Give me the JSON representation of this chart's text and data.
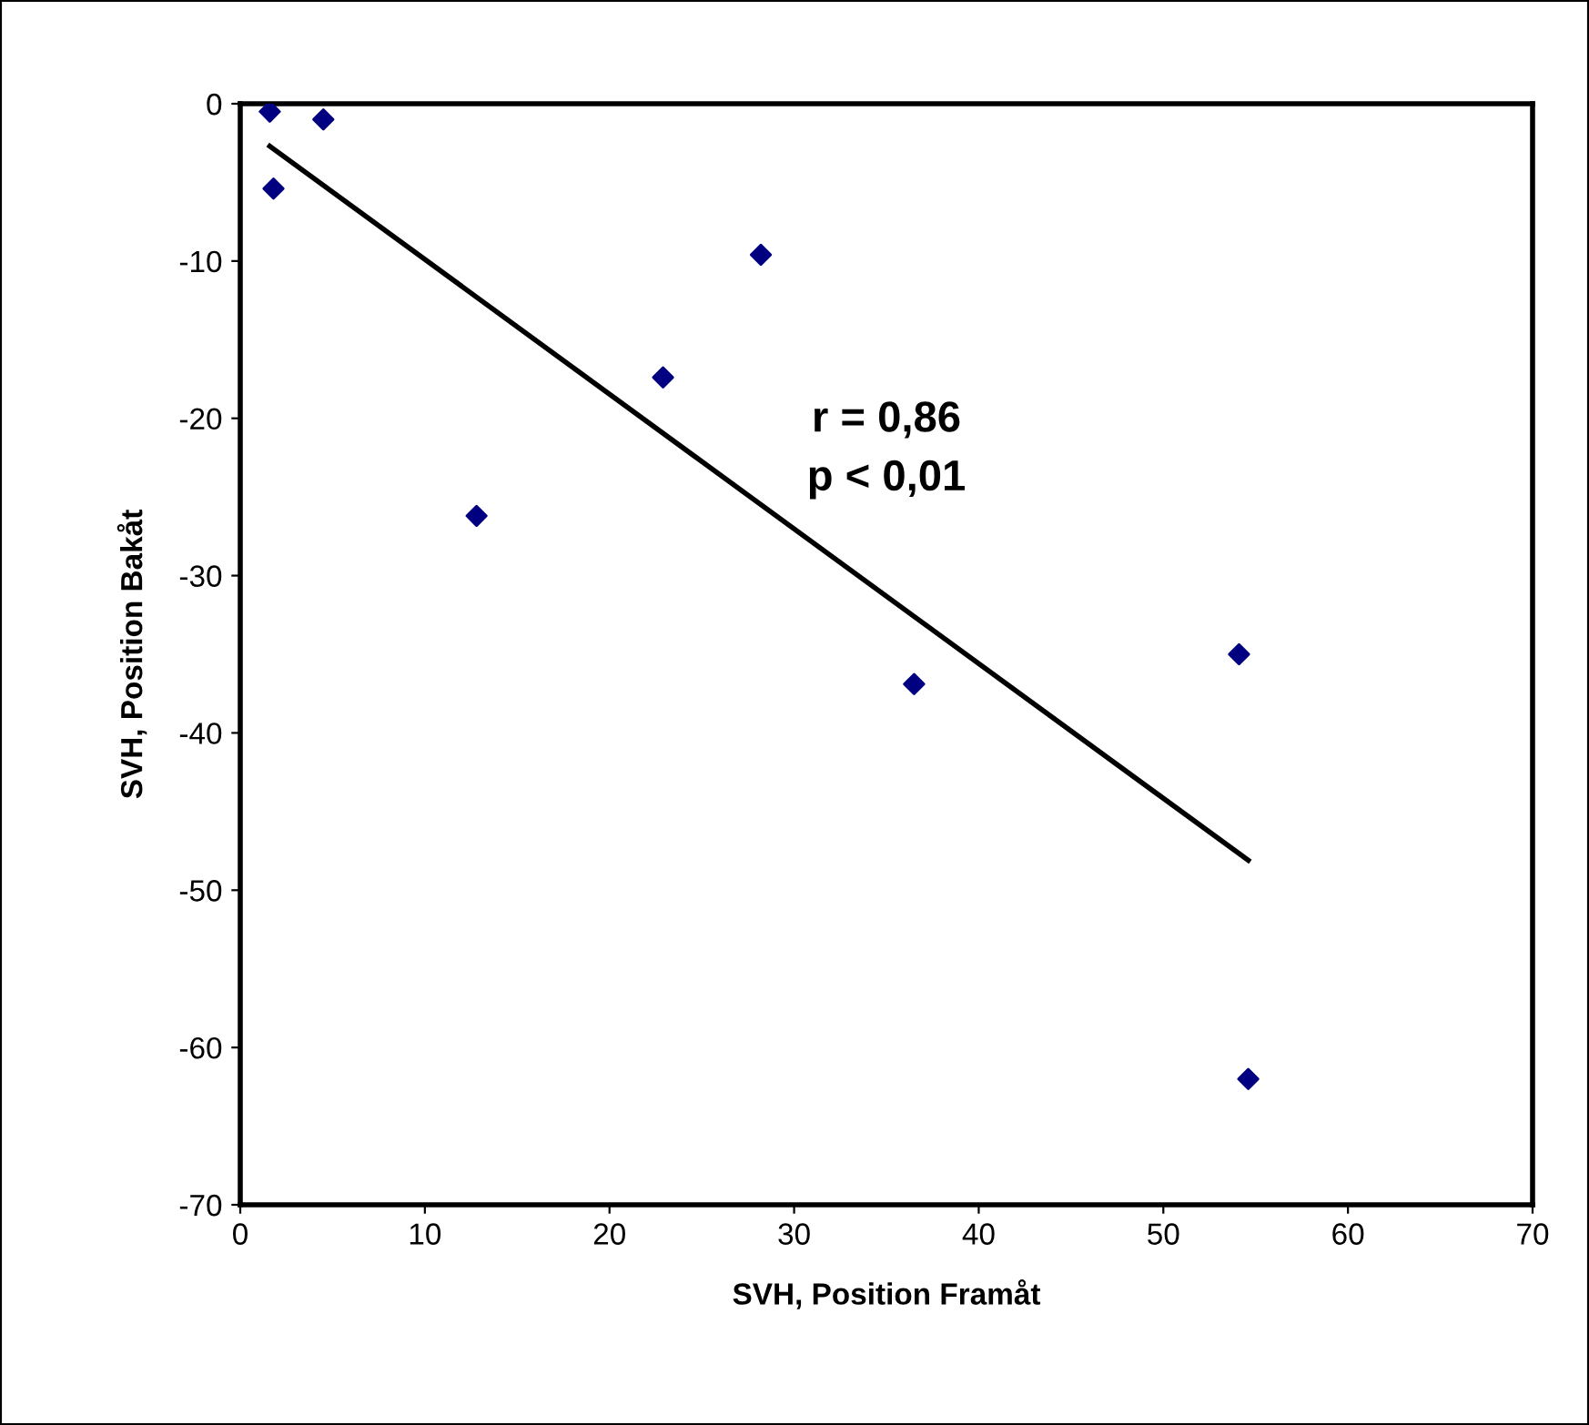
{
  "chart_data": {
    "type": "scatter",
    "xlabel": "SVH, Position Framåt",
    "ylabel": "SVH, Position Bakåt",
    "annotations": [
      "r = 0,86\np < 0,01"
    ],
    "xlim": [
      0,
      70
    ],
    "xticks": [
      0,
      10,
      20,
      30,
      40,
      50,
      60,
      70
    ],
    "ylim": [
      -70,
      0
    ],
    "yticks": [
      -70,
      -60,
      -50,
      -40,
      -30,
      -20,
      -10,
      0
    ],
    "grid": false,
    "legend": false,
    "series": [
      {
        "marker": "diamond",
        "color": "#000080",
        "x": [
          1.6,
          1.8,
          4.5,
          12.8,
          22.9,
          28.2,
          36.5,
          54.1,
          54.6
        ],
        "values": [
          -0.5,
          -5.4,
          -1.0,
          -26.2,
          -17.4,
          -9.6,
          -36.9,
          -35.0,
          -62.0
        ]
      },
      {
        "type": "line",
        "marker": "none",
        "color": "#000000",
        "line_style": "solid",
        "x": [
          1.6,
          54.6
        ],
        "values": [
          -2.7,
          -48.1
        ]
      }
    ]
  }
}
